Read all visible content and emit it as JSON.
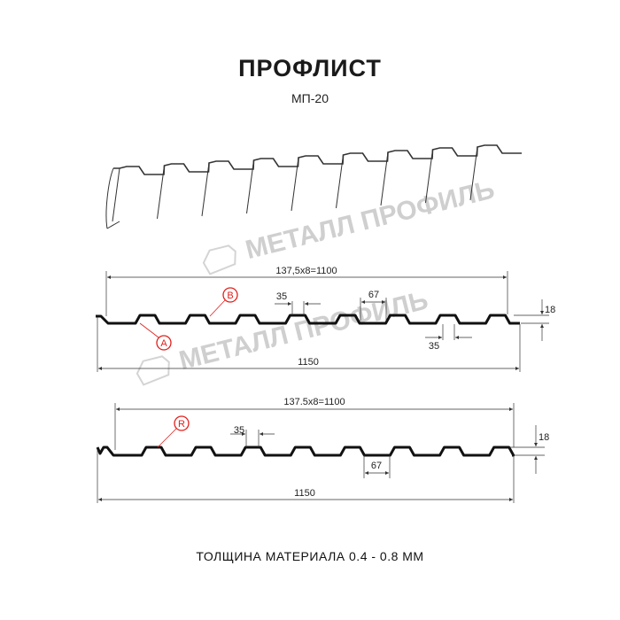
{
  "title": "ПРОФЛИСТ",
  "subtitle": "МП-20",
  "footer": "ТОЛЩИНА МАТЕРИАЛА 0.4 - 0.8 ММ",
  "watermark": "МЕТАЛЛ ПРОФИЛЬ",
  "colors": {
    "profile": "#111111",
    "callout": "#e0201c",
    "watermark": "#cfcfcf",
    "dimension": "#333333"
  },
  "profile_a": {
    "pitch_label": "137,5x8=1100",
    "total_label": "1150",
    "top_width_label": "35",
    "bottom_width_label": "35",
    "rib_label": "67",
    "height_label": "18",
    "callout_a": "A",
    "callout_b": "B"
  },
  "profile_b": {
    "pitch_label": "137.5x8=1100",
    "total_label": "1150",
    "top_width_label": "35",
    "rib_label": "67",
    "height_label": "18",
    "callout_r": "R"
  }
}
